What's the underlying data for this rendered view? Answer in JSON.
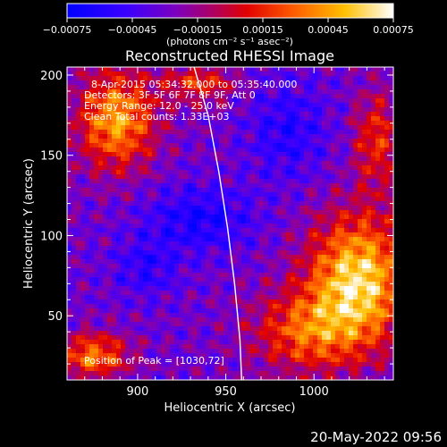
{
  "chart_data": {
    "type": "heatmap",
    "title": "Reconstructed RHESSI Image",
    "xlabel": "Heliocentric X (arcsec)",
    "ylabel": "Heliocentric Y (arcsec)",
    "xlim": [
      860,
      1045
    ],
    "ylim": [
      10,
      205
    ],
    "x_ticks": [
      900,
      950,
      1000
    ],
    "y_ticks": [
      50,
      100,
      150,
      200
    ],
    "colorbar": {
      "label": "(photons cm⁻² s⁻¹ asec⁻²)",
      "range": [
        -0.00075,
        0.00075
      ],
      "ticks": [
        "−0.00075",
        "−0.00045",
        "−0.00015",
        "0.00015",
        "0.00045",
        "0.00075"
      ],
      "tick_values": [
        -0.00075,
        -0.00045,
        -0.00015,
        0.00015,
        0.00045,
        0.00075
      ],
      "colormap": [
        "#0000ff",
        "#5000e0",
        "#8000a0",
        "#c00040",
        "#ff2000",
        "#ff8000",
        "#ffd000",
        "#ffffff"
      ]
    },
    "annotations": [
      "8-Apr-2015 05:34:32.000 to 05:35:40.000",
      "Detectors: 3F 5F 6F 7F 8F 9F, Att 0",
      "Energy Range: 12.0 - 25.0 keV",
      "Clean     Total counts: 1.33E+03"
    ],
    "peak_label": "Position of Peak = [1030,72]",
    "peak": [
      1030,
      72
    ],
    "limb_curve": [
      [
        932,
        205
      ],
      [
        940,
        175
      ],
      [
        946,
        140
      ],
      [
        951,
        105
      ],
      [
        955,
        70
      ],
      [
        958,
        35
      ],
      [
        959,
        10
      ]
    ],
    "grid": false
  },
  "footer": {
    "timestamp": "20-May-2022 09:56"
  }
}
